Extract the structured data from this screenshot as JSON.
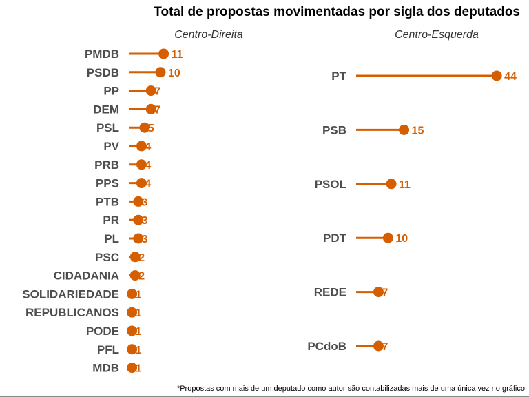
{
  "chart_data": {
    "type": "lollipop",
    "title": "Total de propostas movimentadas por sigla dos deputados",
    "footnote": "*Propostas com mais de um deputado como autor são contabilizadas mais de uma única vez no gráfico",
    "color": "#D55E00",
    "label_color": "#4d4d4d",
    "grid": false,
    "panels": [
      {
        "name": "Centro-Direita",
        "categories": [
          "PMDB",
          "PSDB",
          "PP",
          "DEM",
          "PSL",
          "PV",
          "PRB",
          "PPS",
          "PTB",
          "PR",
          "PL",
          "PSC",
          "CIDADANIA",
          "SOLIDARIEDADE",
          "REPUBLICANOS",
          "PODE",
          "PFL",
          "MDB"
        ],
        "values": [
          11,
          10,
          7,
          7,
          5,
          4,
          4,
          4,
          3,
          3,
          3,
          2,
          2,
          1,
          1,
          1,
          1,
          1
        ]
      },
      {
        "name": "Centro-Esquerda",
        "categories": [
          "PT",
          "PSB",
          "PSOL",
          "PDT",
          "REDE",
          "PCdoB"
        ],
        "values": [
          44,
          15,
          11,
          10,
          7,
          7
        ]
      }
    ]
  }
}
